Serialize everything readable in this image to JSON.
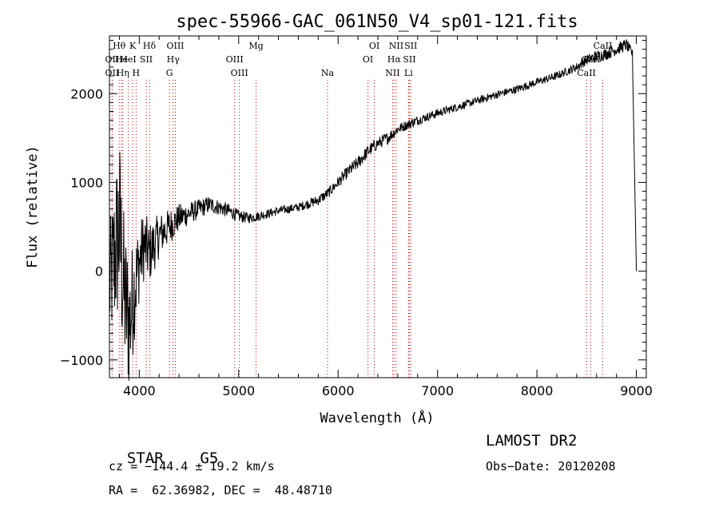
{
  "chart_data": {
    "type": "line",
    "title": "spec-55966-GAC_061N50_V4_sp01-121.fits",
    "xlabel": "Wavelength (Å)",
    "ylabel": "Flux (relative)",
    "xlim": [
      3700,
      9100
    ],
    "ylim": [
      -1200,
      2650
    ],
    "x_ticks": [
      4000,
      5000,
      6000,
      7000,
      8000,
      9000
    ],
    "x_tick_labels": [
      "4000",
      "5000",
      "6000",
      "7000",
      "8000",
      "9000"
    ],
    "y_ticks": [
      -1000,
      0,
      1000,
      2000
    ],
    "y_tick_labels": [
      "−1000",
      "0",
      "1000",
      "2000"
    ],
    "grid": false,
    "legend": "none",
    "line_color": "#000000",
    "marker_color": "#cc0000",
    "series": [
      {
        "x": [
          3700,
          3750,
          3800,
          3850,
          3900,
          3950,
          4000,
          4050,
          4100,
          4200,
          4300,
          4400,
          4500,
          4600,
          4700,
          4800,
          4900,
          5000,
          5100,
          5200,
          5300,
          5400,
          5500,
          5600,
          5700,
          5800,
          5900,
          6000,
          6100,
          6200,
          6300,
          6400,
          6500,
          6600,
          6700,
          6800,
          6900,
          7000,
          7200,
          7400,
          7600,
          7800,
          8000,
          8200,
          8400,
          8500,
          8600,
          8700,
          8800,
          8900,
          8960,
          8980,
          9000
        ],
        "y": [
          -200,
          150,
          500,
          -300,
          -600,
          -200,
          100,
          300,
          200,
          400,
          500,
          600,
          650,
          700,
          750,
          720,
          680,
          620,
          600,
          620,
          650,
          680,
          700,
          720,
          760,
          800,
          880,
          1000,
          1120,
          1220,
          1350,
          1440,
          1500,
          1600,
          1650,
          1700,
          1740,
          1780,
          1850,
          1920,
          1990,
          2050,
          2130,
          2200,
          2300,
          2380,
          2420,
          2450,
          2500,
          2550,
          2450,
          1200,
          0
        ],
        "noise": [
          700,
          900,
          1100,
          900,
          800,
          600,
          450,
          400,
          350,
          250,
          200,
          160,
          130,
          110,
          100,
          90,
          80,
          70,
          60,
          55,
          50,
          50,
          50,
          50,
          55,
          60,
          60,
          65,
          70,
          75,
          75,
          70,
          70,
          60,
          55,
          55,
          50,
          50,
          45,
          45,
          45,
          45,
          45,
          45,
          50,
          60,
          70,
          70,
          70,
          70,
          50,
          0,
          0
        ]
      }
    ],
    "spectral_lines": [
      {
        "label": "Hθ",
        "x": 3798,
        "row": 0
      },
      {
        "label": "K",
        "x": 3934,
        "row": 0
      },
      {
        "label": "Hδ",
        "x": 4102,
        "row": 0
      },
      {
        "label": "OIII",
        "x": 4363,
        "row": 0
      },
      {
        "label": "Mg",
        "x": 5175,
        "row": 0
      },
      {
        "label": "OI",
        "x": 6364,
        "row": 0
      },
      {
        "label": "NII",
        "x": 6584,
        "row": 0
      },
      {
        "label": "SII",
        "x": 6731,
        "row": 0
      },
      {
        "label": "CaII",
        "x": 8662,
        "row": 0
      },
      {
        "label": "OII",
        "x": 3727,
        "row": 1
      },
      {
        "label": "He",
        "x": 3820,
        "row": 1
      },
      {
        "label": "HeI",
        "x": 3889,
        "row": 1
      },
      {
        "label": "SII",
        "x": 4070,
        "row": 1
      },
      {
        "label": "Hγ",
        "x": 4341,
        "row": 1
      },
      {
        "label": "OIII",
        "x": 4959,
        "row": 1
      },
      {
        "label": "OI",
        "x": 6300,
        "row": 1
      },
      {
        "label": "Hα",
        "x": 6563,
        "row": 1
      },
      {
        "label": "SII",
        "x": 6717,
        "row": 1
      },
      {
        "label": "CaII",
        "x": 8542,
        "row": 1
      },
      {
        "label": "OII",
        "x": 3727,
        "row": 2
      },
      {
        "label": "Hη",
        "x": 3835,
        "row": 2
      },
      {
        "label": "H",
        "x": 3968,
        "row": 2
      },
      {
        "label": "G",
        "x": 4304,
        "row": 2
      },
      {
        "label": "OIII",
        "x": 5007,
        "row": 2
      },
      {
        "label": "Na",
        "x": 5893,
        "row": 2
      },
      {
        "label": "NII",
        "x": 6548,
        "row": 2
      },
      {
        "label": "Li",
        "x": 6708,
        "row": 2
      },
      {
        "label": "CaII",
        "x": 8498,
        "row": 2
      }
    ]
  },
  "info": {
    "object_class": "STAR",
    "subclass": "G5",
    "survey": "LAMOST DR2",
    "redshift_text": "cz = −144.4 ± 19.2 km/s",
    "obs_date": "Obs−Date: 20120208",
    "coords": "RA =  62.36982, DEC =  48.48710"
  }
}
